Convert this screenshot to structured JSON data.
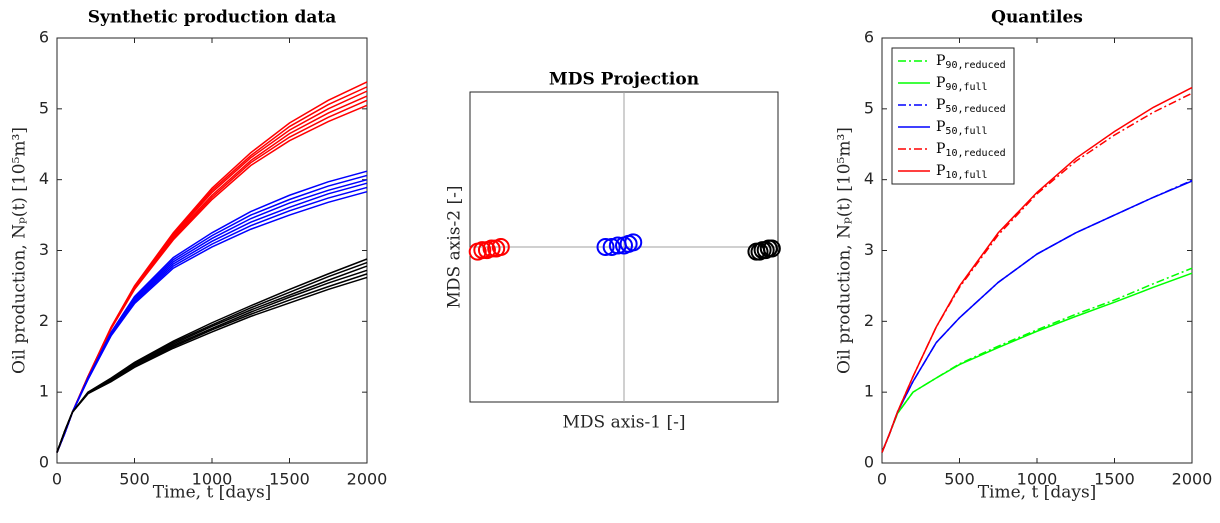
{
  "chart_data": [
    {
      "type": "line",
      "title": "Synthetic production data",
      "x_label": "Time, t [days]",
      "y_label": "Oil production, Nₚ(t) [10⁵m³]",
      "x": [
        0,
        50,
        100,
        200,
        350,
        500,
        750,
        1000,
        1250,
        1500,
        1750,
        2000
      ],
      "xlim": [
        0,
        2000
      ],
      "xticks": [
        0,
        500,
        1000,
        1500,
        2000
      ],
      "ylim": [
        0,
        6
      ],
      "yticks": [
        0,
        1,
        2,
        3,
        4,
        5,
        6
      ],
      "series": [
        {
          "color": "#ff0000",
          "values": [
            0.15,
            0.42,
            0.72,
            1.22,
            1.9,
            2.45,
            3.15,
            3.72,
            4.2,
            4.55,
            4.82,
            5.05
          ]
        },
        {
          "color": "#ff0000",
          "values": [
            0.15,
            0.42,
            0.72,
            1.22,
            1.9,
            2.46,
            3.17,
            3.75,
            4.24,
            4.6,
            4.88,
            5.12
          ]
        },
        {
          "color": "#ff0000",
          "values": [
            0.15,
            0.42,
            0.72,
            1.22,
            1.91,
            2.47,
            3.19,
            3.78,
            4.27,
            4.65,
            4.94,
            5.18
          ]
        },
        {
          "color": "#ff0000",
          "values": [
            0.15,
            0.42,
            0.72,
            1.22,
            1.91,
            2.48,
            3.21,
            3.82,
            4.31,
            4.7,
            5.0,
            5.25
          ]
        },
        {
          "color": "#ff0000",
          "values": [
            0.15,
            0.42,
            0.72,
            1.22,
            1.92,
            2.49,
            3.23,
            3.85,
            4.34,
            4.75,
            5.06,
            5.31
          ]
        },
        {
          "color": "#ff0000",
          "values": [
            0.15,
            0.42,
            0.72,
            1.22,
            1.92,
            2.5,
            3.25,
            3.88,
            4.38,
            4.8,
            5.12,
            5.38
          ]
        },
        {
          "color": "#0000ff",
          "values": [
            0.15,
            0.42,
            0.72,
            1.18,
            1.8,
            2.25,
            2.75,
            3.05,
            3.3,
            3.5,
            3.68,
            3.83
          ]
        },
        {
          "color": "#0000ff",
          "values": [
            0.15,
            0.42,
            0.72,
            1.18,
            1.81,
            2.27,
            2.78,
            3.09,
            3.35,
            3.56,
            3.74,
            3.89
          ]
        },
        {
          "color": "#0000ff",
          "values": [
            0.15,
            0.42,
            0.72,
            1.19,
            1.82,
            2.29,
            2.81,
            3.13,
            3.4,
            3.61,
            3.8,
            3.95
          ]
        },
        {
          "color": "#0000ff",
          "values": [
            0.15,
            0.42,
            0.72,
            1.19,
            1.83,
            2.31,
            2.84,
            3.17,
            3.45,
            3.67,
            3.85,
            4.0
          ]
        },
        {
          "color": "#0000ff",
          "values": [
            0.15,
            0.42,
            0.72,
            1.2,
            1.84,
            2.33,
            2.87,
            3.21,
            3.5,
            3.72,
            3.91,
            4.06
          ]
        },
        {
          "color": "#0000ff",
          "values": [
            0.15,
            0.42,
            0.72,
            1.2,
            1.85,
            2.35,
            2.9,
            3.25,
            3.55,
            3.78,
            3.97,
            4.12
          ]
        },
        {
          "color": "#000000",
          "values": [
            0.15,
            0.45,
            0.72,
            0.98,
            1.15,
            1.35,
            1.62,
            1.85,
            2.07,
            2.26,
            2.45,
            2.62
          ]
        },
        {
          "color": "#000000",
          "values": [
            0.15,
            0.45,
            0.72,
            0.98,
            1.16,
            1.36,
            1.64,
            1.88,
            2.1,
            2.3,
            2.49,
            2.67
          ]
        },
        {
          "color": "#000000",
          "values": [
            0.15,
            0.45,
            0.72,
            0.99,
            1.17,
            1.38,
            1.66,
            1.9,
            2.13,
            2.34,
            2.54,
            2.72
          ]
        },
        {
          "color": "#000000",
          "values": [
            0.15,
            0.45,
            0.72,
            0.99,
            1.18,
            1.39,
            1.68,
            1.93,
            2.16,
            2.37,
            2.58,
            2.78
          ]
        },
        {
          "color": "#000000",
          "values": [
            0.15,
            0.45,
            0.72,
            1.0,
            1.19,
            1.41,
            1.7,
            1.95,
            2.19,
            2.41,
            2.63,
            2.83
          ]
        },
        {
          "color": "#000000",
          "values": [
            0.15,
            0.45,
            0.72,
            1.0,
            1.2,
            1.42,
            1.72,
            1.98,
            2.22,
            2.45,
            2.67,
            2.88
          ]
        }
      ]
    },
    {
      "type": "scatter",
      "title": "MDS Projection",
      "x_label": "MDS axis-1 [-]",
      "y_label": "MDS axis-2 [-]",
      "xlim": [
        -1,
        1
      ],
      "ylim": [
        -1,
        1
      ],
      "zero_lines": true,
      "series": [
        {
          "color": "#ff0000",
          "x": [
            -0.95,
            -0.92,
            -0.89,
            -0.86,
            -0.83,
            -0.8
          ],
          "values": [
            -0.03,
            -0.02,
            -0.02,
            -0.01,
            -0.01,
            0.0
          ]
        },
        {
          "color": "#0000ff",
          "x": [
            -0.12,
            -0.08,
            -0.04,
            0.0,
            0.03,
            0.06
          ],
          "values": [
            0.0,
            0.0,
            0.01,
            0.01,
            0.02,
            0.03
          ]
        },
        {
          "color": "#000000",
          "x": [
            0.86,
            0.88,
            0.9,
            0.92,
            0.94,
            0.96
          ],
          "values": [
            -0.03,
            -0.03,
            -0.02,
            -0.02,
            -0.01,
            -0.01
          ]
        }
      ]
    },
    {
      "type": "line",
      "title": "Quantiles",
      "x_label": "Time, t [days]",
      "y_label": "Oil production, Nₚ(t) [10⁵m³]",
      "x": [
        0,
        50,
        100,
        200,
        350,
        500,
        750,
        1000,
        1250,
        1500,
        1750,
        2000
      ],
      "xlim": [
        0,
        2000
      ],
      "xticks": [
        0,
        500,
        1000,
        1500,
        2000
      ],
      "ylim": [
        0,
        6
      ],
      "yticks": [
        0,
        1,
        2,
        3,
        4,
        5,
        6
      ],
      "legend": "upper left",
      "series": [
        {
          "name": "P90,reduced",
          "color": "#00ff00",
          "linestyle": "dashdot",
          "values": [
            0.15,
            0.42,
            0.7,
            1.0,
            1.2,
            1.4,
            1.65,
            1.88,
            2.1,
            2.3,
            2.53,
            2.75
          ]
        },
        {
          "name": "P90,full",
          "color": "#00ff00",
          "linestyle": "solid",
          "values": [
            0.15,
            0.42,
            0.7,
            1.0,
            1.2,
            1.39,
            1.63,
            1.86,
            2.07,
            2.27,
            2.48,
            2.68
          ]
        },
        {
          "name": "P50,reduced",
          "color": "#0000ff",
          "linestyle": "dashdot",
          "values": [
            0.15,
            0.42,
            0.72,
            1.15,
            1.7,
            2.05,
            2.55,
            2.95,
            3.25,
            3.5,
            3.75,
            3.99
          ]
        },
        {
          "name": "P50,full",
          "color": "#0000ff",
          "linestyle": "solid",
          "values": [
            0.15,
            0.42,
            0.72,
            1.15,
            1.7,
            2.05,
            2.55,
            2.95,
            3.25,
            3.5,
            3.75,
            3.98
          ]
        },
        {
          "name": "P10,reduced",
          "color": "#ff0000",
          "linestyle": "dashdot",
          "values": [
            0.15,
            0.42,
            0.72,
            1.22,
            1.92,
            2.48,
            3.22,
            3.8,
            4.26,
            4.63,
            4.95,
            5.22
          ]
        },
        {
          "name": "P10,full",
          "color": "#ff0000",
          "linestyle": "solid",
          "values": [
            0.15,
            0.42,
            0.72,
            1.22,
            1.92,
            2.5,
            3.25,
            3.82,
            4.3,
            4.68,
            5.02,
            5.3
          ]
        }
      ]
    }
  ]
}
